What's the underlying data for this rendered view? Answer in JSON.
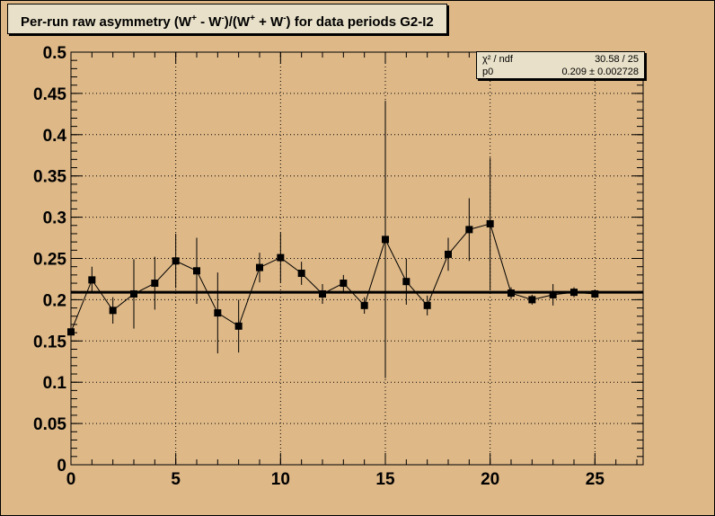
{
  "title": {
    "prefix": "Per-run raw asymmetry (W",
    "sup1": "+",
    "mid1": " - W",
    "sup2": "-",
    "mid2": ")/(W",
    "sup3": "+",
    "mid3": " + W",
    "sup4": "-",
    "suffix": ") for data periods G2-I2"
  },
  "stats": {
    "chi2_label": "χ² / ndf",
    "chi2_value": "30.58 / 25",
    "p0_label": "p0",
    "p0_value": "0.209 ± 0.002728"
  },
  "colors": {
    "background": "#deb887",
    "frame": "#e8e0c8",
    "marker": "#000000"
  },
  "chart_data": {
    "type": "scatter",
    "xlim": [
      0,
      27.3
    ],
    "ylim": [
      0,
      0.5
    ],
    "grid": true,
    "x_ticks": [
      "0",
      "5",
      "10",
      "15",
      "20",
      "25"
    ],
    "y_ticks": [
      "0",
      "0.05",
      "0.1",
      "0.15",
      "0.2",
      "0.25",
      "0.3",
      "0.35",
      "0.4",
      "0.45",
      "0.5"
    ],
    "fit": {
      "function": "pol0",
      "p0": 0.209
    },
    "points": [
      {
        "x": 0,
        "y": 0.161,
        "err": 0.0
      },
      {
        "x": 1,
        "y": 0.224,
        "err": 0.016
      },
      {
        "x": 2,
        "y": 0.187,
        "err": 0.016
      },
      {
        "x": 3,
        "y": 0.207,
        "err": 0.042
      },
      {
        "x": 4,
        "y": 0.22,
        "err": 0.032
      },
      {
        "x": 5,
        "y": 0.247,
        "err": 0.033
      },
      {
        "x": 6,
        "y": 0.235,
        "err": 0.04
      },
      {
        "x": 7,
        "y": 0.184,
        "err": 0.049
      },
      {
        "x": 8,
        "y": 0.168,
        "err": 0.032
      },
      {
        "x": 9,
        "y": 0.239,
        "err": 0.018
      },
      {
        "x": 10,
        "y": 0.251,
        "err": 0.03
      },
      {
        "x": 11,
        "y": 0.232,
        "err": 0.014
      },
      {
        "x": 12,
        "y": 0.207,
        "err": 0.012
      },
      {
        "x": 13,
        "y": 0.22,
        "err": 0.01
      },
      {
        "x": 14,
        "y": 0.193,
        "err": 0.01
      },
      {
        "x": 15,
        "y": 0.273,
        "err": 0.168
      },
      {
        "x": 16,
        "y": 0.222,
        "err": 0.028
      },
      {
        "x": 17,
        "y": 0.193,
        "err": 0.012
      },
      {
        "x": 18,
        "y": 0.255,
        "err": 0.02
      },
      {
        "x": 19,
        "y": 0.285,
        "err": 0.038
      },
      {
        "x": 20,
        "y": 0.292,
        "err": 0.08
      },
      {
        "x": 21,
        "y": 0.208,
        "err": 0.007
      },
      {
        "x": 22,
        "y": 0.2,
        "err": 0.006
      },
      {
        "x": 23,
        "y": 0.206,
        "err": 0.013
      },
      {
        "x": 24,
        "y": 0.209,
        "err": 0.006
      },
      {
        "x": 25,
        "y": 0.207,
        "err": 0.005
      }
    ]
  }
}
